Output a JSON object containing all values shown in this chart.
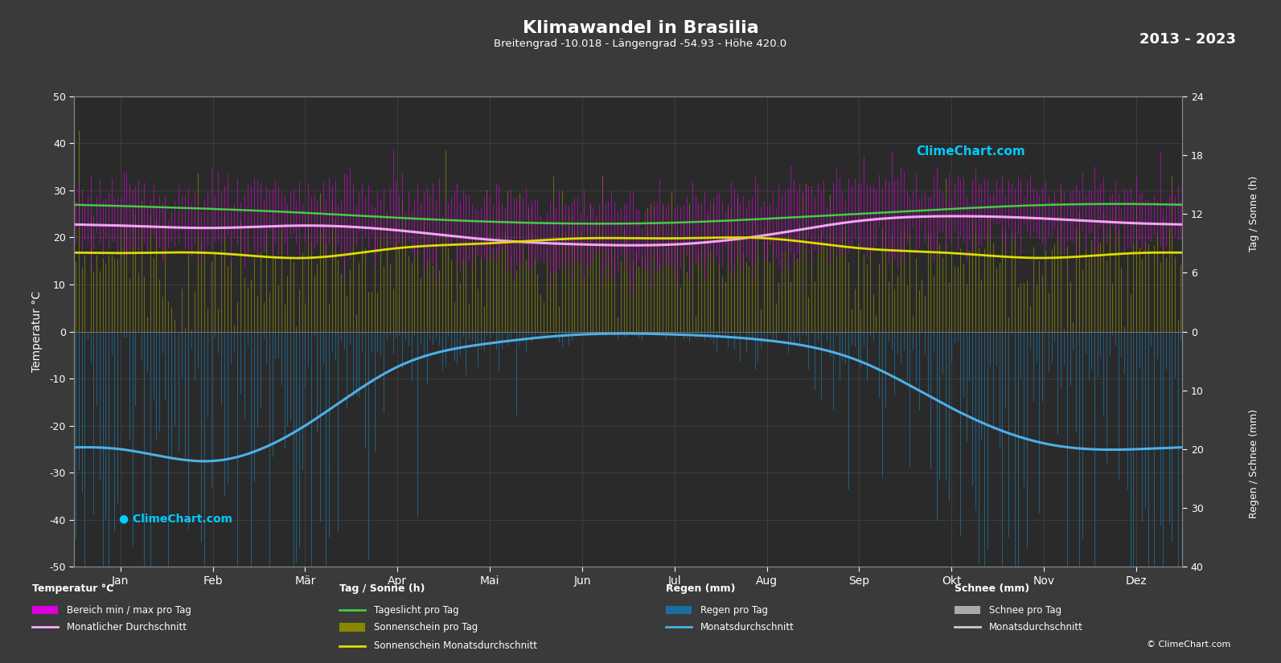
{
  "title": "Klimawandel in Brasilia",
  "subtitle": "Breitengrad -10.018 - Längengrad -54.93 - Höhe 420.0",
  "year_range": "2013 - 2023",
  "background_color": "#3a3a3a",
  "plot_bg_color": "#2a2a2a",
  "grid_color": "#555555",
  "text_color": "#ffffff",
  "months": [
    "Jan",
    "Feb",
    "Mär",
    "Apr",
    "Mai",
    "Jun",
    "Jul",
    "Aug",
    "Sep",
    "Okt",
    "Nov",
    "Dez"
  ],
  "days_per_month": [
    31,
    28,
    31,
    30,
    31,
    30,
    31,
    31,
    30,
    31,
    30,
    31
  ],
  "temp_ylim": [
    -50,
    50
  ],
  "temp_avg_monthly": [
    22.5,
    22.0,
    22.5,
    21.5,
    19.5,
    18.5,
    18.5,
    20.5,
    23.5,
    24.5,
    24.0,
    23.0
  ],
  "temp_max_monthly": [
    29.5,
    29.0,
    29.5,
    29.0,
    28.0,
    27.0,
    27.0,
    29.5,
    31.5,
    31.0,
    30.5,
    30.0
  ],
  "temp_min_monthly": [
    18.5,
    18.5,
    18.5,
    17.5,
    15.0,
    13.5,
    13.5,
    15.0,
    18.0,
    19.5,
    19.5,
    19.0
  ],
  "temp_max_extreme": [
    36.0,
    35.0,
    36.0,
    34.0,
    33.0,
    32.0,
    32.0,
    36.0,
    38.0,
    38.0,
    37.0,
    36.0
  ],
  "temp_min_extreme": [
    14.0,
    14.0,
    14.5,
    13.0,
    10.0,
    8.0,
    7.5,
    9.0,
    12.0,
    14.0,
    15.0,
    14.5
  ],
  "sunshine_daily_avg": [
    8.0,
    8.0,
    7.5,
    8.5,
    9.0,
    9.5,
    9.5,
    9.5,
    8.5,
    8.0,
    7.5,
    8.0
  ],
  "sunshine_daily_noise_scale": 3.5,
  "daylight_monthly": [
    12.8,
    12.5,
    12.1,
    11.6,
    11.2,
    11.0,
    11.1,
    11.5,
    12.0,
    12.5,
    12.9,
    13.0
  ],
  "rain_monthly_avg_mm": [
    20.0,
    22.0,
    16.0,
    6.0,
    2.0,
    0.5,
    0.5,
    1.5,
    5.0,
    13.0,
    19.0,
    20.0
  ],
  "rain_noise_scale": 2.5,
  "sun_scale": 2.0833,
  "rain_scale": 1.25,
  "colors": {
    "temp_fill": "#dd00dd",
    "sunshine_fill": "#888800",
    "rain_fill": "#1a6fa0",
    "rain_fill_dark": "#0a4060",
    "temp_avg_line": "#ffaaff",
    "sunshine_avg_line": "#dddd00",
    "daylight_line": "#44cc44",
    "rain_avg_line": "#4db0e8"
  },
  "legend": {
    "temp_header": "Temperatur °C",
    "tag_header": "Tag / Sonne (h)",
    "regen_header": "Regen (mm)",
    "schnee_header": "Schnee (mm)"
  }
}
